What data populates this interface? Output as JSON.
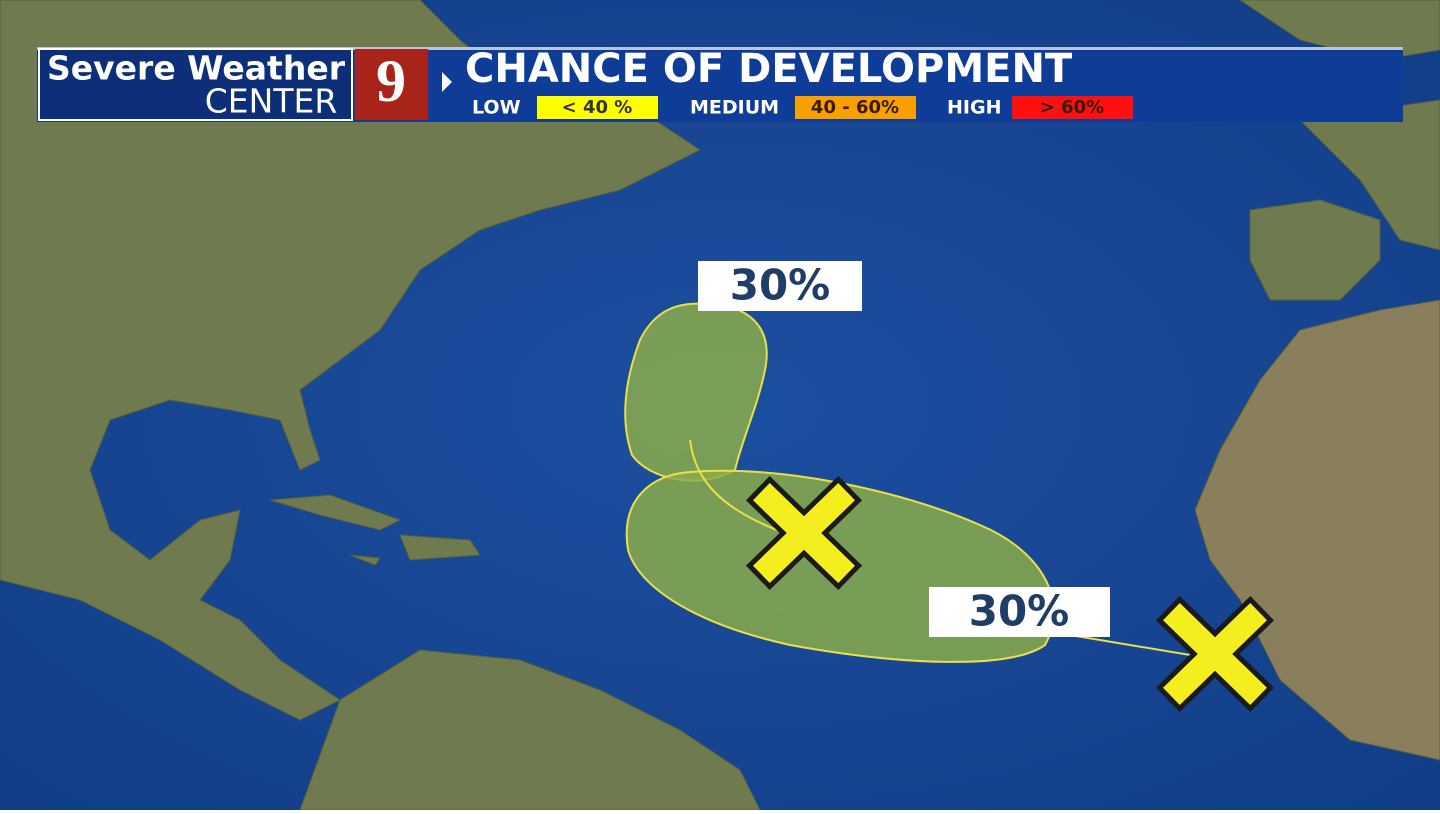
{
  "header": {
    "brand_line1": "Severe Weather",
    "brand_line2": "CENTER",
    "channel": "9",
    "title": "CHANCE OF DEVELOPMENT",
    "legend": [
      {
        "level": "LOW",
        "range": "< 40 %",
        "color": "#ffff00"
      },
      {
        "level": "MEDIUM",
        "range": "40 - 60%",
        "color": "#f7a000"
      },
      {
        "level": "HIGH",
        "range": "> 60%",
        "color": "#ff1010"
      }
    ]
  },
  "areas": [
    {
      "label": "30%"
    },
    {
      "label": "30%"
    }
  ]
}
